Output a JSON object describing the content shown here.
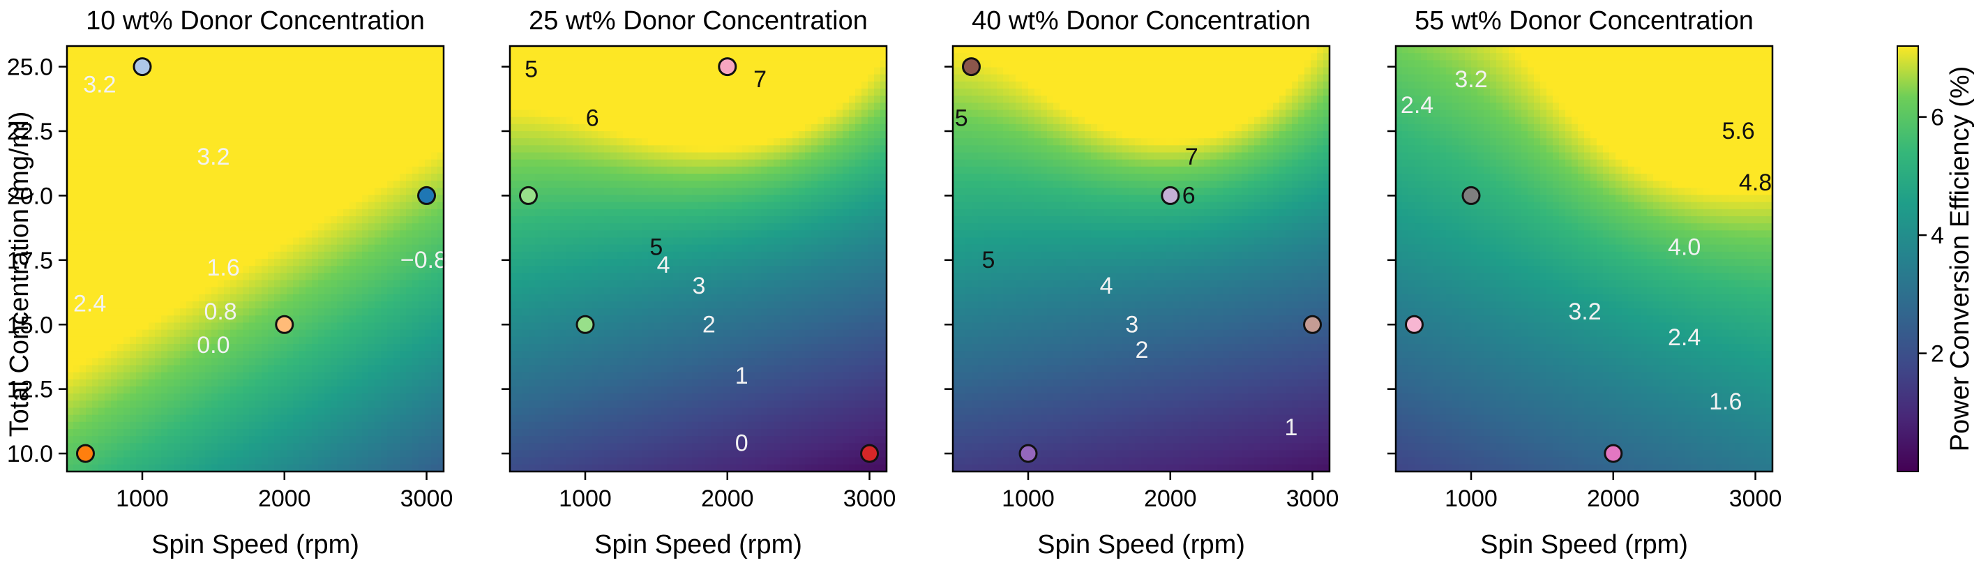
{
  "chart_data": [
    {
      "type": "heatmap",
      "title": "10 wt% Donor Concentration",
      "xlabel": "Spin Speed (rpm)",
      "ylabel": "Total Concentration (mg/ml)",
      "xlim": [
        470,
        3120
      ],
      "ylim": [
        9.3,
        25.8
      ],
      "x_ticks": [
        1000,
        2000,
        3000
      ],
      "x_tick_labels": [
        "1000",
        "2000",
        "3000"
      ],
      "y_ticks": [
        10.0,
        12.5,
        15.0,
        17.5,
        20.0,
        22.5,
        25.0
      ],
      "y_tick_labels": [
        "10.0",
        "12.5",
        "15.0",
        "17.5",
        "20.0",
        "22.5",
        "25.0"
      ],
      "surface": {
        "base": 2.8,
        "slope_y": 0.38,
        "slope_x": -0.00125,
        "peak": 0,
        "peak_x": 2000,
        "peak_y": 25,
        "peak_sx": 800,
        "peak_sy": 6
      },
      "contour_labels": [
        {
          "text": "3.2",
          "x": 700,
          "y": 24.3
        },
        {
          "text": "3.2",
          "x": 1500,
          "y": 21.5
        },
        {
          "text": "2.4",
          "x": 630,
          "y": 15.8
        },
        {
          "text": "1.6",
          "x": 1570,
          "y": 17.2
        },
        {
          "text": "0.8",
          "x": 1550,
          "y": 15.5
        },
        {
          "text": "0.0",
          "x": 1500,
          "y": 14.2
        },
        {
          "text": "−0.8",
          "x": 2980,
          "y": 17.5
        }
      ],
      "points": [
        {
          "x": 1000,
          "y": 25.0,
          "color": "#aec7e8"
        },
        {
          "x": 3000,
          "y": 20.0,
          "color": "#1f77b4"
        },
        {
          "x": 2000,
          "y": 15.0,
          "color": "#ffbb78"
        },
        {
          "x": 600,
          "y": 10.0,
          "color": "#ff7f0e"
        }
      ]
    },
    {
      "type": "heatmap",
      "title": "25 wt% Donor Concentration",
      "xlabel": "Spin Speed (rpm)",
      "ylabel": "",
      "xlim": [
        470,
        3120
      ],
      "ylim": [
        9.3,
        25.8
      ],
      "x_ticks": [
        1000,
        2000,
        3000
      ],
      "x_tick_labels": [
        "1000",
        "2000",
        "3000"
      ],
      "y_ticks": [
        10.0,
        12.5,
        15.0,
        17.5,
        20.0,
        22.5,
        25.0
      ],
      "y_tick_labels": [],
      "surface": {
        "base": -1.2,
        "slope_y": 0.36,
        "slope_x": -0.0006,
        "peak": 2.6,
        "peak_x": 2100,
        "peak_y": 25,
        "peak_sx": 1100,
        "peak_sy": 5
      },
      "contour_labels": [
        {
          "text": "5",
          "x": 620,
          "y": 24.9
        },
        {
          "text": "6",
          "x": 1050,
          "y": 23.0
        },
        {
          "text": "7",
          "x": 2230,
          "y": 24.5
        },
        {
          "text": "5",
          "x": 1500,
          "y": 18.0
        },
        {
          "text": "4",
          "x": 1550,
          "y": 17.3
        },
        {
          "text": "3",
          "x": 1800,
          "y": 16.5
        },
        {
          "text": "2",
          "x": 1870,
          "y": 15.0
        },
        {
          "text": "1",
          "x": 2100,
          "y": 13.0
        },
        {
          "text": "0",
          "x": 2100,
          "y": 10.4
        }
      ],
      "points": [
        {
          "x": 2000,
          "y": 25.0,
          "color": "#f7a6c0"
        },
        {
          "x": 600,
          "y": 20.0,
          "color": "#98df8a"
        },
        {
          "x": 1000,
          "y": 15.0,
          "color": "#98df8a"
        },
        {
          "x": 3000,
          "y": 10.0,
          "color": "#d62728"
        }
      ]
    },
    {
      "type": "heatmap",
      "title": "40 wt% Donor Concentration",
      "xlabel": "Spin Speed (rpm)",
      "ylabel": "",
      "xlim": [
        470,
        3120
      ],
      "ylim": [
        9.3,
        25.8
      ],
      "x_ticks": [
        1000,
        2000,
        3000
      ],
      "x_tick_labels": [
        "1000",
        "2000",
        "3000"
      ],
      "y_ticks": [
        10.0,
        12.5,
        15.0,
        17.5,
        20.0,
        22.5,
        25.0
      ],
      "y_tick_labels": [],
      "surface": {
        "base": -1.5,
        "slope_y": 0.34,
        "slope_x": -0.0004,
        "peak": 2.8,
        "peak_x": 2100,
        "peak_y": 25,
        "peak_sx": 1000,
        "peak_sy": 5
      },
      "contour_labels": [
        {
          "text": "5",
          "x": 530,
          "y": 23.0
        },
        {
          "text": "7",
          "x": 2150,
          "y": 21.5
        },
        {
          "text": "6",
          "x": 2130,
          "y": 20.0
        },
        {
          "text": "5",
          "x": 720,
          "y": 17.5
        },
        {
          "text": "4",
          "x": 1550,
          "y": 16.5
        },
        {
          "text": "3",
          "x": 1730,
          "y": 15.0
        },
        {
          "text": "2",
          "x": 1800,
          "y": 14.0
        },
        {
          "text": "1",
          "x": 2850,
          "y": 11.0
        }
      ],
      "points": [
        {
          "x": 600,
          "y": 25.0,
          "color": "#8c564b"
        },
        {
          "x": 2000,
          "y": 20.0,
          "color": "#c5b0d5"
        },
        {
          "x": 3000,
          "y": 15.0,
          "color": "#c49c94"
        },
        {
          "x": 1000,
          "y": 10.0,
          "color": "#9467bd"
        }
      ]
    },
    {
      "type": "heatmap",
      "title": "55 wt% Donor Concentration",
      "xlabel": "Spin Speed (rpm)",
      "ylabel": "",
      "xlim": [
        470,
        3120
      ],
      "ylim": [
        9.3,
        25.8
      ],
      "x_ticks": [
        1000,
        2000,
        3000
      ],
      "x_tick_labels": [
        "1000",
        "2000",
        "3000"
      ],
      "y_ticks": [
        10.0,
        12.5,
        15.0,
        17.5,
        20.0,
        22.5,
        25.0
      ],
      "y_tick_labels": [],
      "surface": {
        "base": -1.2,
        "slope_y": 0.28,
        "slope_x": 0.0006,
        "peak": 2.2,
        "peak_x": 2600,
        "peak_y": 25,
        "peak_sx": 1000,
        "peak_sy": 6
      },
      "contour_labels": [
        {
          "text": "2.4",
          "x": 620,
          "y": 23.5
        },
        {
          "text": "3.2",
          "x": 1000,
          "y": 24.5
        },
        {
          "text": "5.6",
          "x": 2880,
          "y": 22.5
        },
        {
          "text": "4.8",
          "x": 3000,
          "y": 20.5
        },
        {
          "text": "4.0",
          "x": 2500,
          "y": 18.0
        },
        {
          "text": "3.2",
          "x": 1800,
          "y": 15.5
        },
        {
          "text": "2.4",
          "x": 2500,
          "y": 14.5
        },
        {
          "text": "1.6",
          "x": 2790,
          "y": 12.0
        }
      ],
      "points": [
        {
          "x": 1000,
          "y": 20.0,
          "color": "#7f7f7f"
        },
        {
          "x": 600,
          "y": 15.0,
          "color": "#f7b6d2"
        },
        {
          "x": 2000,
          "y": 10.0,
          "color": "#e377c2"
        }
      ]
    }
  ],
  "colorbar": {
    "label": "Power Conversion Efficiency (%)",
    "range": [
      0,
      7.2
    ],
    "ticks": [
      2,
      4,
      6
    ],
    "tick_labels": [
      "2",
      "4",
      "6"
    ],
    "colormap": "viridis"
  }
}
